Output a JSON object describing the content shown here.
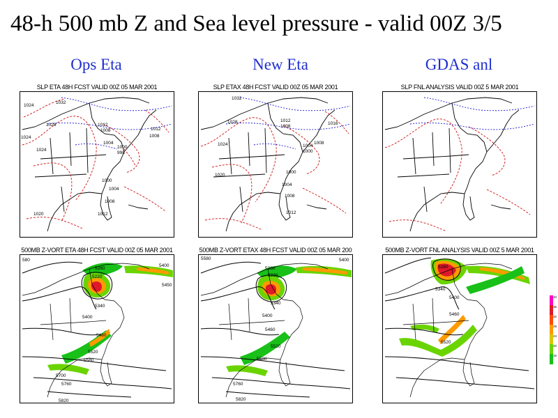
{
  "slide": {
    "title": "48-h 500 mb Z and Sea level pressure - valid 00Z 3/5"
  },
  "columns": [
    {
      "label": "Ops Eta"
    },
    {
      "label": "New Eta"
    },
    {
      "label": "GDAS anl"
    }
  ],
  "slp_panels": [
    {
      "title": "SLP ETA 48H FCST VALID 00Z 05 MAR 2001",
      "isobar_labels": [
        "1024",
        "1032",
        "1028",
        "1024",
        "1024",
        "1012",
        "1008",
        "1004",
        "1000",
        "998",
        "1012",
        "1008",
        "1000",
        "1004",
        "1008",
        "1012",
        "1020"
      ]
    },
    {
      "title": "SLP ETAX 48H FCST VALID 00Z 05 MAR 2001",
      "isobar_labels": [
        "1032",
        "1028",
        "1024",
        "1012",
        "1008",
        "1016",
        "1004",
        "1000",
        "1008",
        "1000",
        "1004",
        "1008",
        "1012",
        "1020"
      ]
    },
    {
      "title": "SLP FNL ANALYSIS VALID 00Z 5 MAR 2001",
      "isobar_labels": []
    }
  ],
  "z500_panels": [
    {
      "title": "500MB Z-VORT ETA 48H FCST VALID 00Z 05 MAR 2001",
      "height_labels": [
        "580",
        "5280",
        "5220",
        "5400",
        "5450",
        "5340",
        "5400",
        "5460",
        "5520",
        "5580",
        "5700",
        "5760",
        "5820"
      ]
    },
    {
      "title": "500MB Z-VORT ETAX 48H FCST VALID 00Z 05 MAR 200",
      "height_labels": [
        "5580",
        "5400",
        "5280",
        "5220",
        "5340",
        "5400",
        "5460",
        "5520",
        "5580",
        "5760",
        "5820"
      ]
    },
    {
      "title": "500MB Z-VORT FNL ANALYSIS VALID 00Z 5 MAR 2001",
      "height_labels": [
        "5340",
        "5280",
        "5400",
        "5460",
        "5520"
      ]
    }
  ],
  "vorticity_legend": {
    "ticks": [
      "40",
      "36",
      "32",
      "28",
      "24",
      "20",
      "16"
    ],
    "colors": [
      "#ff00c8",
      "#e0182a",
      "#ff4a00",
      "#ff9a00",
      "#d8c800",
      "#6ad400",
      "#18c018"
    ]
  },
  "colors": {
    "title": "#000000",
    "column_heading": "#1f2fd0",
    "isobar": "#cc1111",
    "thickness": "#1a1ad0",
    "height_contour": "#000000",
    "map": "#000000"
  }
}
